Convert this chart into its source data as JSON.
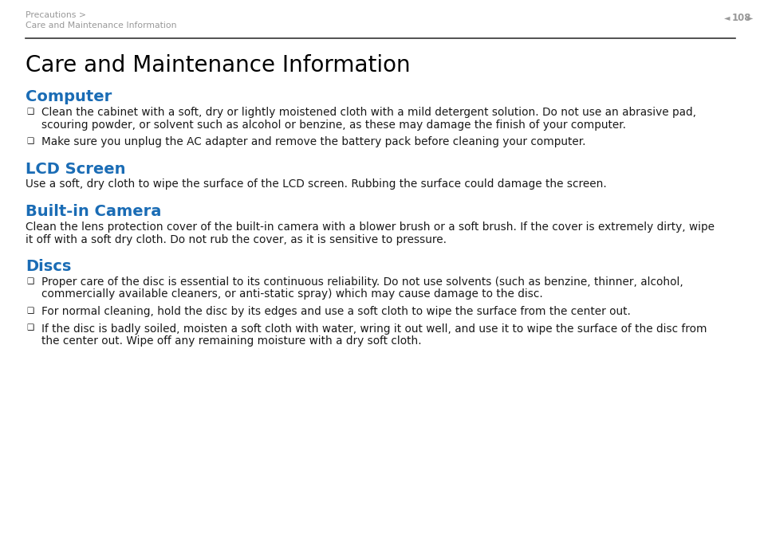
{
  "bg_color": "#ffffff",
  "header_line1": "Precautions >",
  "header_line2": "Care and Maintenance Information",
  "header_page": "108",
  "header_color": "#999999",
  "separator_color": "#333333",
  "title": "Care and Maintenance Information",
  "title_fontsize": 20,
  "title_color": "#000000",
  "section_color": "#1a6cb5",
  "section_fontsize": 14,
  "body_fontsize": 9.8,
  "body_color": "#1a1a1a",
  "sections": [
    {
      "heading": "Computer",
      "bullets": [
        [
          "Clean the cabinet with a soft, dry or lightly moistened cloth with a mild detergent solution. Do not use an abrasive pad,",
          "scouring powder, or solvent such as alcohol or benzine, as these may damage the finish of your computer."
        ],
        [
          "Make sure you unplug the AC adapter and remove the battery pack before cleaning your computer."
        ]
      ],
      "body": null
    },
    {
      "heading": "LCD Screen",
      "bullets": null,
      "body": [
        "Use a soft, dry cloth to wipe the surface of the LCD screen. Rubbing the surface could damage the screen."
      ]
    },
    {
      "heading": "Built-in Camera",
      "bullets": null,
      "body": [
        "Clean the lens protection cover of the built-in camera with a blower brush or a soft brush. If the cover is extremely dirty, wipe",
        "it off with a soft dry cloth. Do not rub the cover, as it is sensitive to pressure."
      ]
    },
    {
      "heading": "Discs",
      "bullets": [
        [
          "Proper care of the disc is essential to its continuous reliability. Do not use solvents (such as benzine, thinner, alcohol,",
          "commercially available cleaners, or anti-static spray) which may cause damage to the disc."
        ],
        [
          "For normal cleaning, hold the disc by its edges and use a soft cloth to wipe the surface from the center out."
        ],
        [
          "If the disc is badly soiled, moisten a soft cloth with water, wring it out well, and use it to wipe the surface of the disc from",
          "the center out. Wipe off any remaining moisture with a dry soft cloth."
        ]
      ],
      "body": null
    }
  ]
}
